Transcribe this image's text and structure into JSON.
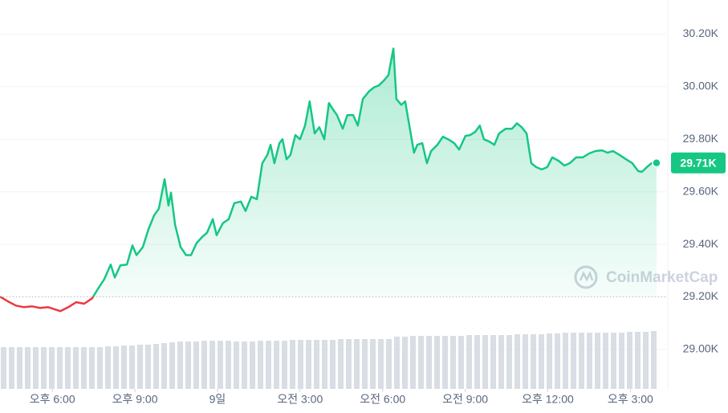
{
  "chart_data": {
    "type": "line",
    "watermark": "CoinMarketCap",
    "xlim": [
      16.1,
      40.01
    ],
    "xticks": [
      {
        "value": 18,
        "label": "오후 6:00"
      },
      {
        "value": 21,
        "label": "오후 9:00"
      },
      {
        "value": 24,
        "label": "9일"
      },
      {
        "value": 27,
        "label": "오전 3:00"
      },
      {
        "value": 30,
        "label": "오전 6:00"
      },
      {
        "value": 33,
        "label": "오전 9:00"
      },
      {
        "value": 36,
        "label": "오후 12:00"
      },
      {
        "value": 39,
        "label": "오후 3:00"
      }
    ],
    "ylim": [
      28850,
      30330
    ],
    "yticks": [
      {
        "value": 29000,
        "label": "29.00K"
      },
      {
        "value": 29200,
        "label": "29.20K"
      },
      {
        "value": 29400,
        "label": "29.40K"
      },
      {
        "value": 29600,
        "label": "29.60K"
      },
      {
        "value": 29800,
        "label": "29.80K"
      },
      {
        "value": 30000,
        "label": "30.00K"
      },
      {
        "value": 30200,
        "label": "30.20K"
      }
    ],
    "grid": true,
    "up_color": "#16c784",
    "down_color": "#ea3943",
    "x": [
      16.1,
      16.39,
      16.68,
      16.97,
      17.27,
      17.56,
      17.85,
      18.29,
      18.58,
      18.87,
      19.16,
      19.45,
      19.66,
      19.89,
      20.12,
      20.27,
      20.47,
      20.71,
      20.91,
      21.06,
      21.29,
      21.49,
      21.7,
      21.87,
      22.08,
      22.22,
      22.31,
      22.46,
      22.66,
      22.86,
      23.04,
      23.24,
      23.45,
      23.62,
      23.83,
      23.97,
      24.2,
      24.41,
      24.61,
      24.85,
      25.02,
      25.23,
      25.43,
      25.63,
      25.81,
      25.93,
      26.07,
      26.25,
      26.36,
      26.51,
      26.65,
      26.83,
      27.0,
      27.18,
      27.35,
      27.53,
      27.7,
      27.88,
      28.05,
      28.2,
      28.34,
      28.55,
      28.72,
      28.93,
      29.1,
      29.28,
      29.51,
      29.69,
      29.86,
      30.04,
      30.21,
      30.39,
      30.5,
      30.68,
      30.82,
      30.97,
      31.14,
      31.26,
      31.44,
      31.61,
      31.76,
      31.99,
      32.19,
      32.43,
      32.6,
      32.78,
      33.01,
      33.18,
      33.36,
      33.53,
      33.68,
      33.88,
      34.06,
      34.23,
      34.47,
      34.7,
      34.88,
      35.05,
      35.23,
      35.4,
      35.58,
      35.78,
      35.98,
      36.16,
      36.39,
      36.6,
      36.8,
      37.03,
      37.27,
      37.5,
      37.73,
      37.97,
      38.17,
      38.37,
      38.61,
      38.84,
      39.07,
      39.28,
      39.42,
      39.6,
      39.77,
      39.95
    ],
    "values": [
      29201,
      29183,
      29167,
      29161,
      29164,
      29158,
      29161,
      29146,
      29161,
      29180,
      29174,
      29195,
      29231,
      29268,
      29323,
      29274,
      29320,
      29323,
      29396,
      29359,
      29390,
      29457,
      29511,
      29536,
      29648,
      29548,
      29597,
      29475,
      29390,
      29359,
      29359,
      29405,
      29429,
      29444,
      29496,
      29435,
      29481,
      29496,
      29557,
      29563,
      29527,
      29581,
      29572,
      29709,
      29740,
      29779,
      29709,
      29785,
      29800,
      29724,
      29740,
      29816,
      29800,
      29852,
      29944,
      29822,
      29846,
      29800,
      29938,
      29913,
      29892,
      29840,
      29892,
      29892,
      29852,
      29953,
      29983,
      29998,
      30005,
      30023,
      30044,
      30145,
      29953,
      29931,
      29944,
      29852,
      29749,
      29779,
      29785,
      29709,
      29755,
      29779,
      29810,
      29797,
      29785,
      29761,
      29813,
      29816,
      29828,
      29852,
      29800,
      29791,
      29779,
      29822,
      29840,
      29840,
      29861,
      29846,
      29822,
      29709,
      29694,
      29685,
      29694,
      29731,
      29718,
      29700,
      29709,
      29731,
      29731,
      29746,
      29755,
      29758,
      29749,
      29755,
      29740,
      29724,
      29709,
      29679,
      29676,
      29694,
      29709,
      29710
    ],
    "current_price": {
      "value": 29710,
      "label": "29.71K"
    },
    "volume": {
      "color": "#d9dde4",
      "ylim": [
        0,
        100
      ],
      "values": [
        52,
        52,
        52,
        52,
        52,
        52,
        52,
        52,
        52,
        52,
        52,
        52,
        52,
        53,
        53,
        54,
        54,
        55,
        55,
        56,
        57,
        58,
        59,
        59,
        59,
        60,
        60,
        60,
        60,
        59,
        59,
        59,
        60,
        60,
        60,
        60,
        61,
        61,
        61,
        61,
        61,
        61,
        62,
        62,
        62,
        62,
        62,
        62,
        62,
        65,
        65,
        66,
        66,
        66,
        66,
        66,
        66,
        66,
        67,
        67,
        67,
        67,
        67,
        67,
        68,
        68,
        68,
        68,
        69,
        69,
        70,
        70,
        70,
        70,
        70,
        70,
        70,
        70,
        71,
        71,
        71,
        72
      ]
    }
  }
}
